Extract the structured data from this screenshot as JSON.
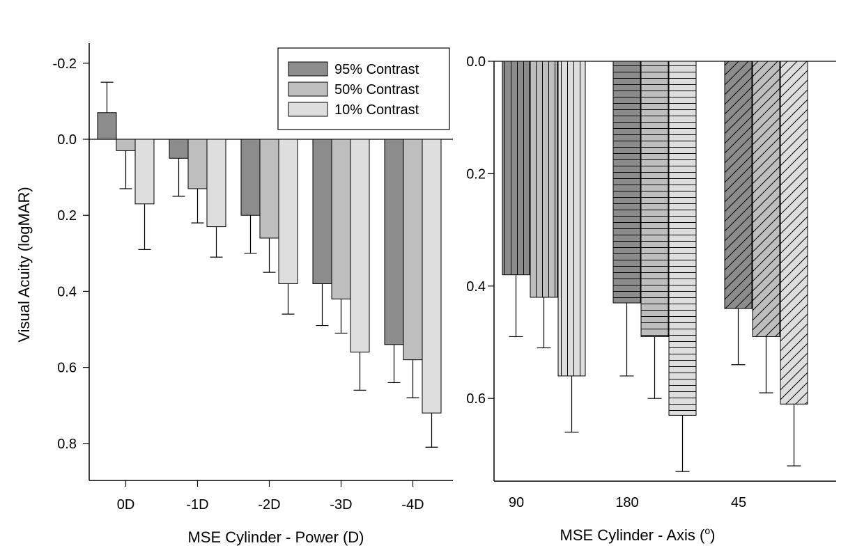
{
  "chart_data": [
    {
      "type": "bar",
      "xlabel": "MSE Cylinder - Power (D)",
      "ylabel": "Visual Acuity (logMAR)",
      "ylim": [
        -0.2,
        0.8
      ],
      "y_inverted": true,
      "y_ticks": [
        "-0.2",
        "0.0",
        "0.2",
        "0.4",
        "0.6",
        "0.8"
      ],
      "categories": [
        "0D",
        "-1D",
        "-2D",
        "-3D",
        "-4D"
      ],
      "legend": {
        "position": "top-right"
      },
      "series": [
        {
          "name": "95% Contrast",
          "color": "#8c8c8c",
          "values": [
            -0.07,
            0.05,
            0.2,
            0.38,
            0.54
          ],
          "errors": [
            0.08,
            0.1,
            0.1,
            0.11,
            0.1
          ]
        },
        {
          "name": "50% Contrast",
          "color": "#bebebe",
          "values": [
            0.03,
            0.13,
            0.26,
            0.42,
            0.58
          ],
          "errors": [
            0.1,
            0.09,
            0.09,
            0.09,
            0.1
          ]
        },
        {
          "name": "10% Contrast",
          "color": "#dedede",
          "values": [
            0.17,
            0.23,
            0.38,
            0.56,
            0.72
          ],
          "errors": [
            0.12,
            0.08,
            0.08,
            0.1,
            0.09
          ]
        }
      ]
    },
    {
      "type": "bar",
      "xlabel": "MSE Cylinder - Axis (",
      "xlabel_sup": "o",
      "xlabel_end": ")",
      "ylabel": "",
      "ylim": [
        0.0,
        0.75
      ],
      "y_inverted": true,
      "y_ticks": [
        "0.0",
        "0.2",
        "0.4",
        "0.6"
      ],
      "categories": [
        "90",
        "180",
        "45"
      ],
      "patterns": [
        "vertical",
        "horizontal",
        "diagonal"
      ],
      "series": [
        {
          "name": "95% Contrast",
          "color": "#8c8c8c",
          "values": [
            0.38,
            0.43,
            0.44
          ],
          "errors": [
            0.11,
            0.13,
            0.1
          ]
        },
        {
          "name": "50% Contrast",
          "color": "#bebebe",
          "values": [
            0.42,
            0.49,
            0.49
          ],
          "errors": [
            0.09,
            0.11,
            0.1
          ]
        },
        {
          "name": "10% Contrast",
          "color": "#dedede",
          "values": [
            0.56,
            0.63,
            0.61
          ],
          "errors": [
            0.1,
            0.1,
            0.11
          ]
        }
      ]
    }
  ]
}
